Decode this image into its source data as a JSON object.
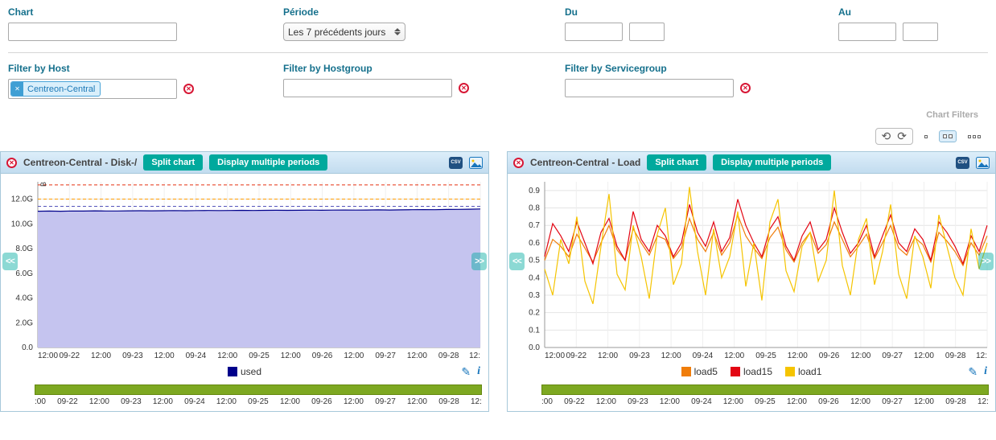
{
  "filters": {
    "chart": {
      "label": "Chart",
      "value": ""
    },
    "periode": {
      "label": "Période",
      "value": "Les 7 précédents jours"
    },
    "du": {
      "label": "Du",
      "date": "",
      "time": ""
    },
    "au": {
      "label": "Au",
      "date": "",
      "time": ""
    },
    "host": {
      "label": "Filter by Host",
      "tag": "Centreon-Central"
    },
    "hostgroup": {
      "label": "Filter by Hostgroup",
      "value": ""
    },
    "servicegroup": {
      "label": "Filter by Servicegroup",
      "value": ""
    },
    "section_label": "Chart Filters"
  },
  "toolbar": {
    "icons": [
      "refresh-icon",
      "auto-refresh-period-icon",
      "layout-single-icon",
      "layout-two-columns-icon",
      "layout-three-columns-icon"
    ]
  },
  "actions": {
    "split": "Split chart",
    "multi": "Display multiple periods",
    "csv": "CSV"
  },
  "nav": {
    "prev": "<<",
    "next": ">>"
  },
  "icons": {
    "close": "✕",
    "pencil": "✎",
    "info": "i"
  },
  "colors": {
    "label_teal": "#15708c",
    "button_teal": "#00a99d",
    "alert_red": "#d71735",
    "timeline_green": "#7da821",
    "header_blue": "#c2dcef"
  },
  "chart_data": [
    {
      "type": "area",
      "title": "Centreon-Central - Disk-/",
      "unit": "B",
      "ylim": [
        0,
        13.4
      ],
      "yticks": [
        0,
        2,
        4,
        6,
        8,
        10,
        12
      ],
      "ytick_labels": [
        "0.0",
        "2.0G",
        "4.0G",
        "6.0G",
        "8.0G",
        "10.0G",
        "12.0G"
      ],
      "xlabels": [
        "12:00",
        "09-22",
        "12:00",
        "09-23",
        "12:00",
        "09-24",
        "12:00",
        "09-25",
        "12:00",
        "09-26",
        "12:00",
        "09-27",
        "12:00",
        "09-28",
        "12:"
      ],
      "bar_labels": [
        ":00",
        "09-22",
        "12:00",
        "09-23",
        "12:00",
        "09-24",
        "12:00",
        "09-25",
        "12:00",
        "09-26",
        "12:00",
        "09-27",
        "12:00",
        "09-28",
        "12:"
      ],
      "thresholds": [
        {
          "value": 13.15,
          "color": "#e53012",
          "dash": true
        },
        {
          "value": 12.0,
          "color": "#ff9a00",
          "dash": true
        },
        {
          "value": 11.42,
          "color": "#5555bb",
          "dash": true
        }
      ],
      "series": [
        {
          "name": "used",
          "color": "#00008b",
          "fill": "#c5c4ef",
          "values": [
            11.02,
            11.03,
            11.02,
            11.04,
            11.03,
            11.05,
            11.04,
            11.04,
            11.05,
            11.06,
            11.05,
            11.06,
            11.07,
            11.06,
            11.07,
            11.08,
            11.07,
            11.08,
            11.09,
            11.08,
            11.09,
            11.1,
            11.09,
            11.1,
            11.11,
            11.1,
            11.11,
            11.12,
            11.11,
            11.12,
            11.13,
            11.12,
            11.13,
            11.14,
            11.15,
            11.14,
            11.16,
            11.17,
            11.18,
            11.2
          ]
        }
      ]
    },
    {
      "type": "line",
      "title": "Centreon-Central - Load",
      "unit": "",
      "ylim": [
        0,
        0.95
      ],
      "yticks": [
        0,
        0.1,
        0.2,
        0.3,
        0.4,
        0.5,
        0.6,
        0.7,
        0.8,
        0.9
      ],
      "ytick_labels": [
        "0.0",
        "0.1",
        "0.2",
        "0.3",
        "0.4",
        "0.5",
        "0.6",
        "0.7",
        "0.8",
        "0.9"
      ],
      "xlabels": [
        "12:00",
        "09-22",
        "12:00",
        "09-23",
        "12:00",
        "09-24",
        "12:00",
        "09-25",
        "12:00",
        "09-26",
        "12:00",
        "09-27",
        "12:00",
        "09-28",
        "12:"
      ],
      "bar_labels": [
        ":00",
        "09-22",
        "12:00",
        "09-23",
        "12:00",
        "09-24",
        "12:00",
        "09-25",
        "12:00",
        "09-26",
        "12:00",
        "09-27",
        "12:00",
        "09-28",
        "12:"
      ],
      "thresholds": [],
      "series": [
        {
          "name": "load5",
          "color": "#f07d0a",
          "values": [
            0.5,
            0.62,
            0.58,
            0.52,
            0.65,
            0.57,
            0.49,
            0.6,
            0.7,
            0.56,
            0.5,
            0.68,
            0.6,
            0.53,
            0.64,
            0.62,
            0.51,
            0.57,
            0.74,
            0.62,
            0.55,
            0.66,
            0.53,
            0.6,
            0.76,
            0.64,
            0.57,
            0.51,
            0.63,
            0.69,
            0.56,
            0.49,
            0.6,
            0.66,
            0.54,
            0.59,
            0.72,
            0.62,
            0.52,
            0.58,
            0.65,
            0.51,
            0.6,
            0.7,
            0.57,
            0.53,
            0.63,
            0.59,
            0.49,
            0.66,
            0.61,
            0.55,
            0.47,
            0.6,
            0.53,
            0.64
          ]
        },
        {
          "name": "load15",
          "color": "#e30613",
          "values": [
            0.52,
            0.71,
            0.64,
            0.55,
            0.72,
            0.6,
            0.48,
            0.66,
            0.74,
            0.58,
            0.5,
            0.78,
            0.62,
            0.55,
            0.7,
            0.64,
            0.52,
            0.6,
            0.82,
            0.66,
            0.58,
            0.72,
            0.55,
            0.63,
            0.85,
            0.7,
            0.6,
            0.52,
            0.68,
            0.75,
            0.58,
            0.5,
            0.64,
            0.72,
            0.56,
            0.62,
            0.8,
            0.66,
            0.54,
            0.6,
            0.7,
            0.52,
            0.64,
            0.76,
            0.6,
            0.55,
            0.68,
            0.62,
            0.5,
            0.72,
            0.66,
            0.58,
            0.48,
            0.64,
            0.55,
            0.7
          ]
        },
        {
          "name": "load1",
          "color": "#f5c400",
          "values": [
            0.45,
            0.3,
            0.62,
            0.48,
            0.75,
            0.38,
            0.25,
            0.58,
            0.88,
            0.42,
            0.33,
            0.7,
            0.52,
            0.28,
            0.65,
            0.8,
            0.36,
            0.48,
            0.92,
            0.55,
            0.3,
            0.68,
            0.4,
            0.52,
            0.78,
            0.35,
            0.6,
            0.27,
            0.72,
            0.85,
            0.44,
            0.32,
            0.58,
            0.66,
            0.38,
            0.5,
            0.9,
            0.47,
            0.3,
            0.62,
            0.74,
            0.36,
            0.55,
            0.82,
            0.42,
            0.28,
            0.64,
            0.52,
            0.34,
            0.76,
            0.58,
            0.4,
            0.3,
            0.68,
            0.45,
            0.6
          ]
        }
      ]
    }
  ]
}
